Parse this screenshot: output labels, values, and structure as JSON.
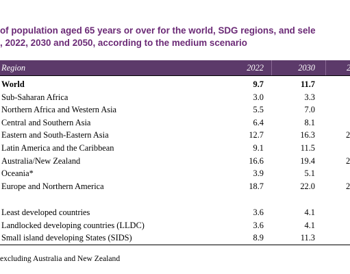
{
  "title": {
    "line1": "of population aged 65 years or over for the world, SDG regions, and sele",
    "line2": ", 2022, 2030 and 2050, according to the medium scenario"
  },
  "table": {
    "headers": {
      "region": "Region",
      "y2022": "2022",
      "y2030": "2030",
      "y2050": "2"
    },
    "rows": [
      {
        "label": "World",
        "v2022": "9.7",
        "v2030": "11.7",
        "v2050": ""
      },
      {
        "label": "Sub-Saharan Africa",
        "v2022": "3.0",
        "v2030": "3.3",
        "v2050": ""
      },
      {
        "label": "Northern Africa and Western Asia",
        "v2022": "5.5",
        "v2030": "7.0",
        "v2050": ""
      },
      {
        "label": "Central and Southern Asia",
        "v2022": "6.4",
        "v2030": "8.1",
        "v2050": ""
      },
      {
        "label": "Eastern and South-Eastern Asia",
        "v2022": "12.7",
        "v2030": "16.3",
        "v2050": "2"
      },
      {
        "label": "Latin America and the Caribbean",
        "v2022": "9.1",
        "v2030": "11.5",
        "v2050": ""
      },
      {
        "label": "Australia/New Zealand",
        "v2022": "16.6",
        "v2030": "19.4",
        "v2050": "2"
      },
      {
        "label": "Oceania*",
        "v2022": "3.9",
        "v2030": "5.1",
        "v2050": ""
      },
      {
        "label": "Europe and Northern America",
        "v2022": "18.7",
        "v2030": "22.0",
        "v2050": "2"
      }
    ],
    "group_rows": [
      {
        "label": "Least developed countries",
        "v2022": "3.6",
        "v2030": "4.1",
        "v2050": ""
      },
      {
        "label": "Landlocked developing countries (LLDC)",
        "v2022": "3.6",
        "v2030": "4.1",
        "v2050": ""
      },
      {
        "label": "Small island developing States (SIDS)",
        "v2022": "8.9",
        "v2030": "11.3",
        "v2050": ""
      }
    ]
  },
  "footnote": "excluding Australia and New Zealand"
}
